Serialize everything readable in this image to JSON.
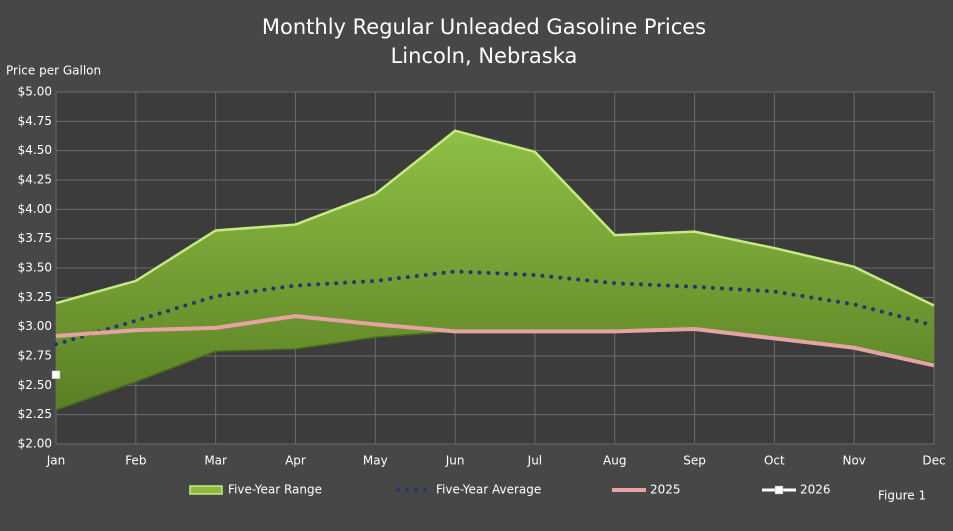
{
  "chart_data": {
    "type": "line",
    "title": "Monthly Regular Unleaded Gasoline Prices",
    "subtitle": "Lincoln, Nebraska",
    "y_label": "Price per Gallon",
    "annotation": "Figure 1",
    "categories": [
      "Jan",
      "Feb",
      "Mar",
      "Apr",
      "May",
      "Jun",
      "Jul",
      "Aug",
      "Sep",
      "Oct",
      "Nov",
      "Dec"
    ],
    "range": {
      "name": "Five-Year Range",
      "color": "#8db843",
      "low": [
        2.29,
        2.53,
        2.79,
        2.81,
        2.91,
        2.96,
        2.96,
        2.96,
        2.98,
        2.9,
        2.82,
        2.69
      ],
      "high": [
        3.2,
        3.39,
        3.82,
        3.87,
        4.13,
        4.67,
        4.49,
        3.78,
        3.81,
        3.67,
        3.51,
        3.18
      ]
    },
    "series": [
      {
        "name": "Five-Year Average",
        "color": "#1f3b6e",
        "style": "dotted",
        "values": [
          2.85,
          3.05,
          3.26,
          3.35,
          3.39,
          3.47,
          3.44,
          3.37,
          3.34,
          3.3,
          3.19,
          3.01
        ]
      },
      {
        "name": "2025",
        "color": "#e6a3a3",
        "style": "solid",
        "values": [
          2.92,
          2.97,
          2.99,
          3.09,
          3.02,
          2.96,
          2.96,
          2.96,
          2.98,
          2.9,
          2.82,
          2.67
        ]
      },
      {
        "name": "2026",
        "color": "#ffffff",
        "style": "marker",
        "values": [
          2.59,
          null,
          null,
          null,
          null,
          null,
          null,
          null,
          null,
          null,
          null,
          null
        ]
      }
    ],
    "ylim": [
      2.0,
      5.0
    ],
    "yticks": [
      {
        "value": 2,
        "label": "$2.00"
      },
      {
        "value": 2.25,
        "label": "$2.25"
      },
      {
        "value": 2.5,
        "label": "$2.50"
      },
      {
        "value": 2.75,
        "label": "$2.75"
      },
      {
        "value": 3,
        "label": "$3.00"
      },
      {
        "value": 3.25,
        "label": "$3.25"
      },
      {
        "value": 3.5,
        "label": "$3.50"
      },
      {
        "value": 3.75,
        "label": "$3.75"
      },
      {
        "value": 4,
        "label": "$4.00"
      },
      {
        "value": 4.25,
        "label": "$4.25"
      },
      {
        "value": 4.5,
        "label": "$4.50"
      },
      {
        "value": 4.75,
        "label": "$4.75"
      },
      {
        "value": 5,
        "label": "$5.00"
      }
    ],
    "grid": true
  }
}
